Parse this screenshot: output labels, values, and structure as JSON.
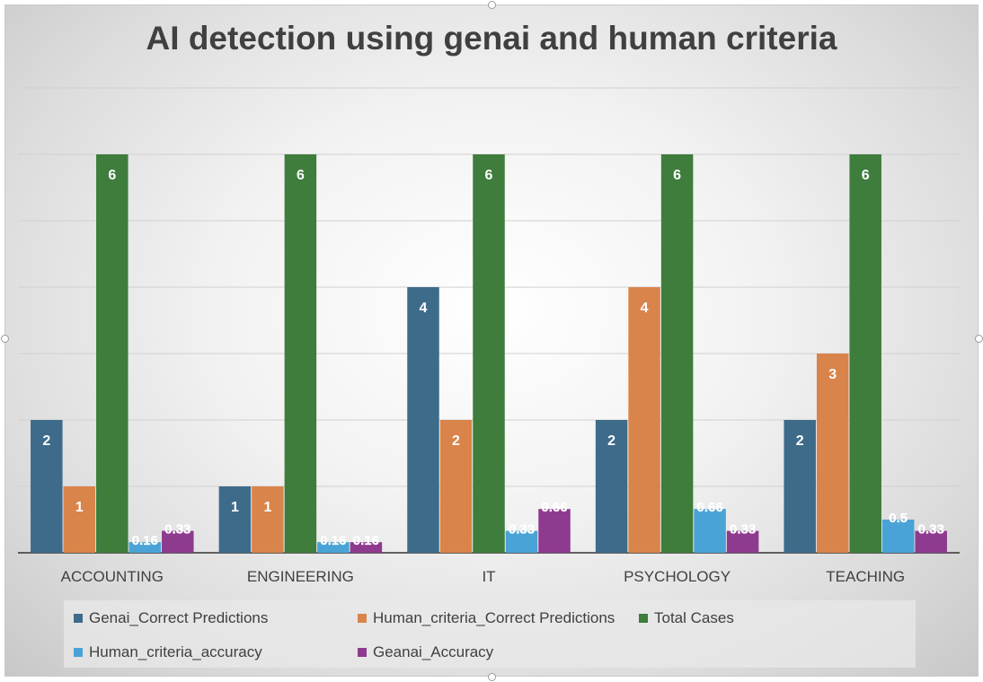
{
  "chart_data": {
    "type": "bar",
    "title": "AI detection using genai and human criteria",
    "xlabel": "",
    "ylabel": "",
    "ylim": [
      0,
      7
    ],
    "grid": true,
    "legend_position": "bottom",
    "categories": [
      "ACCOUNTING",
      "ENGINEERING",
      "IT",
      "PSYCHOLOGY",
      "TEACHING"
    ],
    "series": [
      {
        "name": "Genai_Correct Predictions",
        "color": "#3e6b8a",
        "values": [
          2,
          1,
          4,
          2,
          2
        ],
        "labels": [
          "2",
          "1",
          "4",
          "2",
          "2"
        ]
      },
      {
        "name": "Human_criteria_Correct Predictions",
        "color": "#d9844a",
        "values": [
          1,
          1,
          2,
          4,
          3
        ],
        "labels": [
          "1",
          "1",
          "2",
          "4",
          "3"
        ]
      },
      {
        "name": "Total Cases",
        "color": "#3e7d3c",
        "values": [
          6,
          6,
          6,
          6,
          6
        ],
        "labels": [
          "6",
          "6",
          "6",
          "6",
          "6"
        ]
      },
      {
        "name": "Human_criteria_accuracy",
        "color": "#4aa3d6",
        "values": [
          0.16,
          0.16,
          0.33,
          0.66,
          0.5
        ],
        "labels": [
          "0.16",
          "0.16",
          "0.33",
          "0.66",
          "0.5"
        ]
      },
      {
        "name": "Geanai_Accuracy",
        "color": "#8e3a8e",
        "values": [
          0.33,
          0.16,
          0.66,
          0.33,
          0.33
        ],
        "labels": [
          "0.33",
          "0.16",
          "0.66",
          "0.33",
          "0.33"
        ]
      }
    ]
  }
}
